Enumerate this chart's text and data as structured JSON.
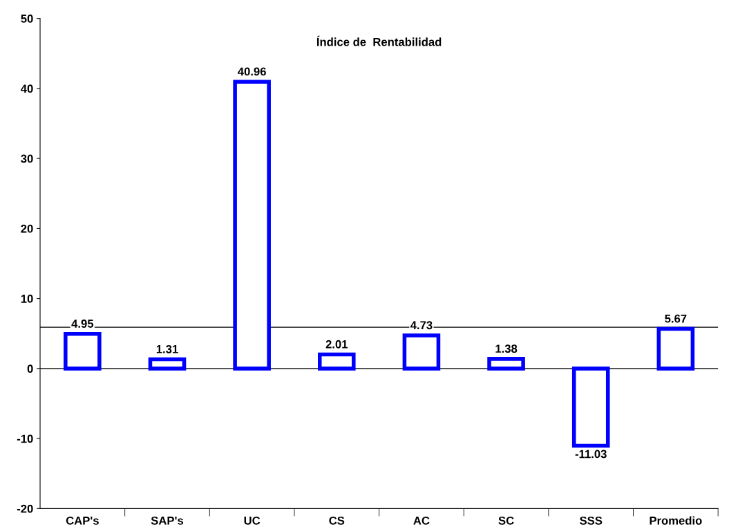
{
  "chart_data": {
    "type": "bar",
    "title": "Índice de  Rentabilidad",
    "categories": [
      "CAP's",
      "SAP's",
      "UC",
      "CS",
      "AC",
      "SC",
      "SSS",
      "Promedio"
    ],
    "series": [
      {
        "color": "#0000ff",
        "values": [
          4.95,
          1.31,
          40.96,
          2.01,
          4.73,
          1.38,
          -11.03,
          5.67
        ]
      }
    ],
    "data_labels": true,
    "ylim": [
      -20,
      50
    ],
    "yticks": [
      -20,
      -10,
      0,
      10,
      20,
      30,
      40,
      50
    ],
    "ref_lines": [
      {
        "axis": "y",
        "value": 0,
        "color": "#000000"
      },
      {
        "axis": "y",
        "value": 5.9,
        "color": "#000000"
      }
    ],
    "grid": false,
    "legend": false
  }
}
